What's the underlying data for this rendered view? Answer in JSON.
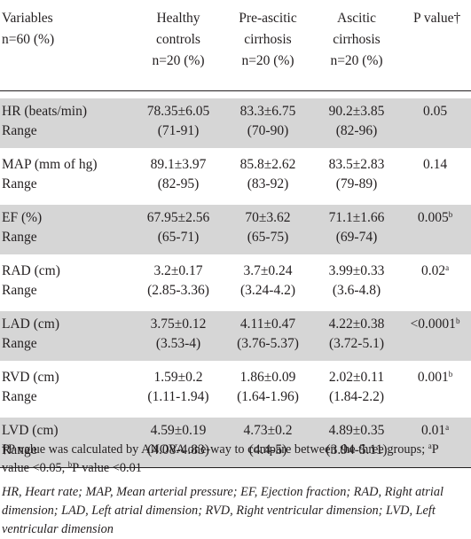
{
  "header": {
    "variables_label": "Variables",
    "n_label": "n=60  (%)",
    "healthy_line1": "Healthy",
    "healthy_line2": "controls",
    "healthy_n": "n=20  (%)",
    "preascitic_line1": "Pre-ascitic",
    "preascitic_line2": "cirrhosis",
    "preascitic_n": "n=20  (%)",
    "ascitic_line1": "Ascitic",
    "ascitic_line2": "cirrhosis",
    "ascitic_n": "n=20  (%)",
    "pvalue_label": "P  value†"
  },
  "rows": [
    {
      "variable": "HR (beats/min)",
      "range_label": "Range",
      "healthy": "78.35±6.05",
      "healthy_range": "(71-91)",
      "preascitic": "83.3±6.75",
      "preascitic_range": "(70-90)",
      "ascitic": "90.2±3.85",
      "ascitic_range": "(82-96)",
      "p": "0.05",
      "p_sup": ""
    },
    {
      "variable": "MAP (mm of hg)",
      "range_label": "Range",
      "healthy": "89.1±3.97",
      "healthy_range": "(82-95)",
      "preascitic": "85.8±2.62",
      "preascitic_range": "(83-92)",
      "ascitic": "83.5±2.83",
      "ascitic_range": "(79-89)",
      "p": "0.14",
      "p_sup": ""
    },
    {
      "variable": "EF (%)",
      "range_label": "Range",
      "healthy": "67.95±2.56",
      "healthy_range": "(65-71)",
      "preascitic": "70±3.62",
      "preascitic_range": "(65-75)",
      "ascitic": "71.1±1.66",
      "ascitic_range": "(69-74)",
      "p": "0.005",
      "p_sup": "b"
    },
    {
      "variable": "RAD (cm)",
      "range_label": "Range",
      "healthy": "3.2±0.17",
      "healthy_range": "(2.85-3.36)",
      "preascitic": "3.7±0.24",
      "preascitic_range": "(3.24-4.2)",
      "ascitic": "3.99±0.33",
      "ascitic_range": "(3.6-4.8)",
      "p": "0.02",
      "p_sup": "a"
    },
    {
      "variable": "LAD (cm)",
      "range_label": "Range",
      "healthy": "3.75±0.12",
      "healthy_range": "(3.53-4)",
      "preascitic": "4.11±0.47",
      "preascitic_range": "(3.76-5.37)",
      "ascitic": "4.22±0.38",
      "ascitic_range": "(3.72-5.1)",
      "p": "<0.0001",
      "p_sup": "b"
    },
    {
      "variable": "RVD (cm)",
      "range_label": "Range",
      "healthy": "1.59±0.2",
      "healthy_range": "(1.11-1.94)",
      "preascitic": "1.86±0.09",
      "preascitic_range": "(1.64-1.96)",
      "ascitic": "2.02±0.11",
      "ascitic_range": "(1.84-2.2)",
      "p": "0.001",
      "p_sup": "b"
    },
    {
      "variable": "LVD (cm)",
      "range_label": "Range",
      "healthy": "4.59±0.19",
      "healthy_range": "(4.08-4.83)",
      "preascitic": "4.73±0.2",
      "preascitic_range": "(4.4-5)",
      "ascitic": "4.89±0.35",
      "ascitic_range": "(3.94-5.11)",
      "p": "0.01",
      "p_sup": "a"
    }
  ],
  "footnote": {
    "text_main": "†P value was calculated by ANOVA one-way to compare between the three groups; ",
    "sup_a": "a",
    "text_a": "P value <0.05, ",
    "sup_b": "b",
    "text_b": "P value <0.01"
  },
  "abbreviations": "HR, Heart rate; MAP, Mean arterial pressure; EF, Ejection fraction; RAD, Right atrial dimension; LAD, Left atrial dimension; RVD, Right ventricular dimension; LVD, Left ventricular dimension",
  "colors": {
    "row_shade": "#d6d6d6",
    "text": "#231f20",
    "background": "#ffffff"
  }
}
